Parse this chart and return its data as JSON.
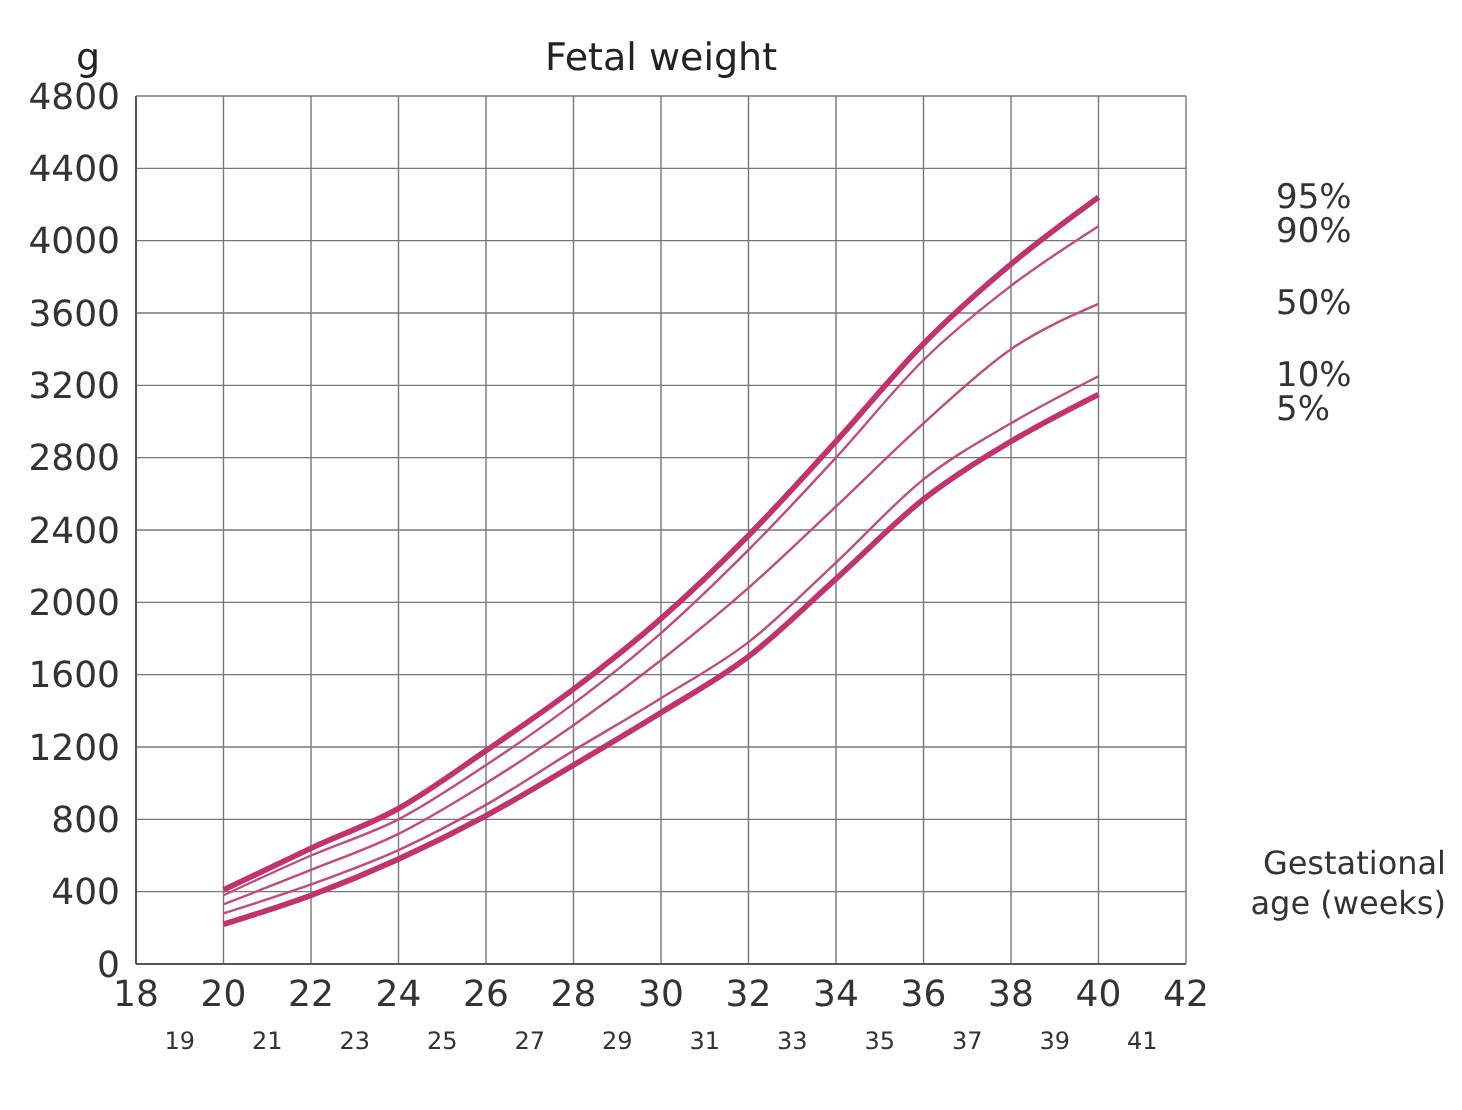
{
  "chart_data": {
    "type": "line",
    "title": "Fetal weight",
    "ylabel": "g",
    "xlabel": "Gestational age (weeks)",
    "x": [
      20,
      22,
      24,
      26,
      28,
      30,
      32,
      34,
      36,
      38,
      40
    ],
    "series": [
      {
        "name": "95%",
        "color": "#c2336e",
        "values": [
          410,
          640,
          860,
          1180,
          1520,
          1910,
          2370,
          2890,
          3430,
          3870,
          4240
        ]
      },
      {
        "name": "90%",
        "color": "#c24a7e",
        "values": [
          380,
          600,
          800,
          1100,
          1440,
          1830,
          2290,
          2800,
          3340,
          3750,
          4080
        ]
      },
      {
        "name": "50%",
        "color": "#c24a7e",
        "values": [
          330,
          520,
          720,
          1000,
          1320,
          1680,
          2080,
          2530,
          2990,
          3400,
          3650
        ]
      },
      {
        "name": "10%",
        "color": "#c24a7e",
        "values": [
          280,
          440,
          630,
          880,
          1180,
          1470,
          1780,
          2220,
          2680,
          2990,
          3250
        ]
      },
      {
        "name": "5%",
        "color": "#c2336e",
        "values": [
          220,
          380,
          580,
          820,
          1100,
          1390,
          1700,
          2130,
          2570,
          2890,
          3150
        ]
      }
    ],
    "xlim": [
      18,
      42
    ],
    "xticks": [
      18,
      20,
      22,
      24,
      26,
      28,
      30,
      32,
      34,
      36,
      38,
      40,
      42
    ],
    "x2lim": [
      18,
      42
    ],
    "x2ticks": [
      19,
      21,
      23,
      25,
      27,
      29,
      31,
      33,
      35,
      37,
      39,
      41
    ],
    "ylim": [
      0,
      4800
    ],
    "yticks": [
      0,
      400,
      800,
      1200,
      1600,
      2000,
      2400,
      2800,
      3200,
      3600,
      4000,
      4400,
      4800
    ],
    "grid": true,
    "marker": "none",
    "line_style": "solid"
  }
}
